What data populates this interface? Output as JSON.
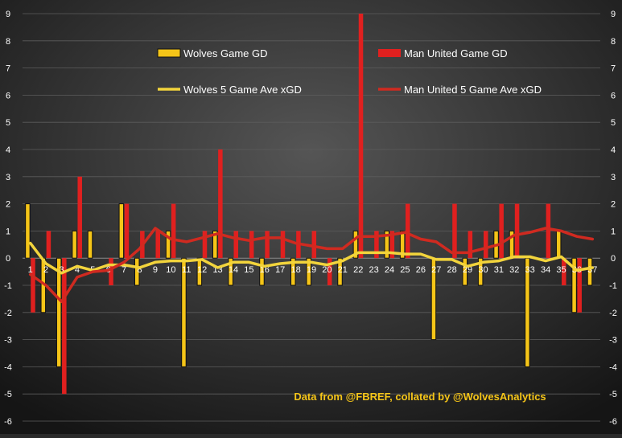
{
  "chart_data": {
    "type": "bar",
    "categories": [
      "1",
      "2",
      "3",
      "4",
      "5",
      "6",
      "7",
      "8",
      "9",
      "10",
      "11",
      "12",
      "13",
      "14",
      "15",
      "16",
      "17",
      "18",
      "19",
      "20",
      "21",
      "22",
      "23",
      "24",
      "25",
      "26",
      "27",
      "28",
      "29",
      "30",
      "31",
      "32",
      "33",
      "34",
      "35",
      "36",
      "37"
    ],
    "ylim": [
      -6,
      9
    ],
    "yticks": [
      "-6",
      "-5",
      "-4",
      "-3",
      "-2",
      "-1",
      "0",
      "1",
      "2",
      "3",
      "4",
      "5",
      "6",
      "7",
      "8",
      "9"
    ],
    "grid": true,
    "legend_position": "top",
    "series": [
      {
        "name": "Wolves Game GD",
        "kind": "bar",
        "color": "#f5c518",
        "values": [
          2,
          -2,
          -4,
          1,
          1,
          0,
          2,
          -1,
          0,
          1,
          -4,
          -1,
          1,
          -1,
          0,
          -1,
          0,
          -1,
          -1,
          0,
          -1,
          1,
          0,
          1,
          1,
          0,
          -3,
          0,
          -1,
          -1,
          1,
          1,
          -4,
          0,
          1,
          -2,
          -1
        ]
      },
      {
        "name": "Man United Game GD",
        "kind": "bar",
        "color": "#e0201f",
        "values": [
          -2,
          1,
          -5,
          3,
          0,
          -1,
          2,
          1,
          1,
          2,
          0,
          1,
          4,
          1,
          1,
          1,
          1,
          1,
          1,
          -1,
          0,
          9,
          1,
          1,
          2,
          0,
          0,
          2,
          1,
          1,
          2,
          2,
          0,
          2,
          -1,
          -2,
          0
        ]
      },
      {
        "name": "Wolves 5 Game Ave xGD",
        "kind": "line",
        "color": "#f2d43c",
        "values": [
          0.55,
          -0.2,
          -0.55,
          -0.3,
          -0.45,
          -0.25,
          -0.25,
          -0.35,
          -0.15,
          -0.1,
          -0.1,
          -0.05,
          -0.35,
          -0.15,
          -0.15,
          -0.3,
          -0.2,
          -0.15,
          -0.15,
          -0.25,
          -0.1,
          0.2,
          0.2,
          0.2,
          0.15,
          0.15,
          -0.05,
          -0.05,
          -0.3,
          -0.15,
          -0.1,
          0.05,
          0.05,
          -0.1,
          0.05,
          -0.45,
          -0.35
        ]
      },
      {
        "name": "Man United 5 Game Ave xGD",
        "kind": "line",
        "color": "#d02a20",
        "values": [
          -0.6,
          -1.0,
          -1.6,
          -0.7,
          -0.5,
          -0.45,
          -0.15,
          0.35,
          1.1,
          0.7,
          0.6,
          0.75,
          0.9,
          0.75,
          0.65,
          0.75,
          0.75,
          0.55,
          0.45,
          0.35,
          0.35,
          0.8,
          0.8,
          0.85,
          0.95,
          0.7,
          0.6,
          0.2,
          0.2,
          0.35,
          0.5,
          0.85,
          0.95,
          1.1,
          1.0,
          0.8,
          0.7
        ]
      }
    ],
    "annotation": "Data from @FBREF, collated by @WolvesAnalytics"
  },
  "colors": {
    "background_top": "#4a4a4a",
    "background_bottom": "#141414",
    "text": "#ffffff",
    "annotation": "#f5c518"
  }
}
